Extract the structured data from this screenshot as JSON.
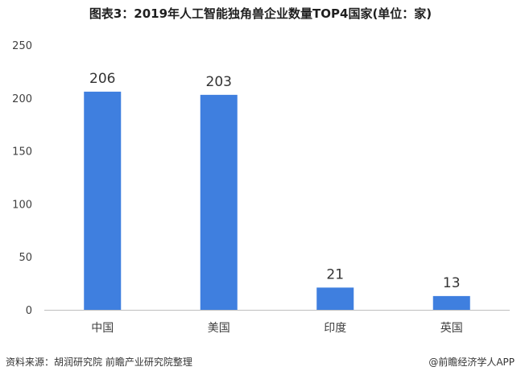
{
  "chart_data": {
    "type": "bar",
    "title": "图表3：2019年人工智能独角兽企业数量TOP4国家(单位：家)",
    "categories": [
      "中国",
      "美国",
      "印度",
      "英国"
    ],
    "values": [
      206,
      203,
      21,
      13
    ],
    "data_labels": [
      "206",
      "203",
      "21",
      "13"
    ],
    "ylim": [
      0,
      250
    ],
    "yticks": [
      "0",
      "50",
      "100",
      "150",
      "200",
      "250"
    ],
    "xlabel": "",
    "ylabel": "",
    "grid": false,
    "legend": "none",
    "bar_color": "#3f7fdf"
  },
  "footer": {
    "source": "资料来源：胡润研究院 前瞻产业研究院整理",
    "credit": "@前瞻经济学人APP"
  },
  "colors": {
    "bar": "#3f7fdf",
    "axis": "#bfbfbf",
    "text": "#404040"
  }
}
